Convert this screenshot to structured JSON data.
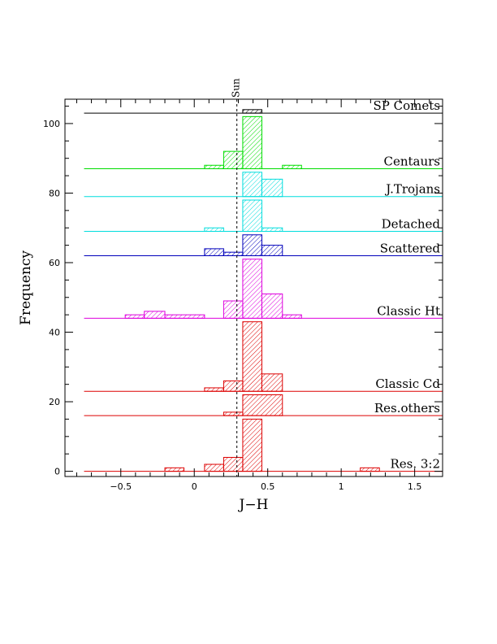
{
  "chart_data": {
    "type": "histogram",
    "xlabel": "J−H",
    "ylabel": "Frequency",
    "xlim": [
      -0.88,
      1.69
    ],
    "ylim": [
      -1.5,
      107
    ],
    "bin_width": 0.133,
    "x_ticks": [
      -0.5,
      0,
      0.5,
      1,
      1.5
    ],
    "x_tick_labels": [
      "−0.5",
      "0",
      "0.5",
      "1",
      "1.5"
    ],
    "y_ticks": [
      0,
      20,
      40,
      60,
      80,
      100
    ],
    "y_tick_labels": [
      "0",
      "20",
      "40",
      "60",
      "80",
      "100"
    ],
    "reference_line": {
      "label": "Sun",
      "x": 0.29
    },
    "series": [
      {
        "name": "SP Comets",
        "color": "#000000",
        "baseline": 103,
        "bins": [
          {
            "x0": 0.33,
            "x1": 0.46,
            "count": 1
          }
        ]
      },
      {
        "name": "Centaurs",
        "color": "#00dd00",
        "baseline": 87,
        "bins": [
          {
            "x0": 0.07,
            "x1": 0.2,
            "count": 1
          },
          {
            "x0": 0.2,
            "x1": 0.33,
            "count": 5
          },
          {
            "x0": 0.33,
            "x1": 0.46,
            "count": 15
          },
          {
            "x0": 0.6,
            "x1": 0.73,
            "count": 1
          }
        ]
      },
      {
        "name": "J.Trojans",
        "color": "#00dddd",
        "baseline": 79,
        "bins": [
          {
            "x0": 0.33,
            "x1": 0.46,
            "count": 7
          },
          {
            "x0": 0.46,
            "x1": 0.6,
            "count": 5
          }
        ]
      },
      {
        "name": "Detached",
        "color": "#00dddd",
        "baseline": 69,
        "bins": [
          {
            "x0": 0.07,
            "x1": 0.2,
            "count": 1
          },
          {
            "x0": 0.33,
            "x1": 0.46,
            "count": 9
          },
          {
            "x0": 0.46,
            "x1": 0.6,
            "count": 1
          }
        ]
      },
      {
        "name": "Scattered",
        "color": "#0000bb",
        "baseline": 62,
        "bins": [
          {
            "x0": 0.07,
            "x1": 0.2,
            "count": 2
          },
          {
            "x0": 0.2,
            "x1": 0.33,
            "count": 1
          },
          {
            "x0": 0.33,
            "x1": 0.46,
            "count": 6
          },
          {
            "x0": 0.46,
            "x1": 0.6,
            "count": 3
          }
        ]
      },
      {
        "name": "Classic Ht",
        "color": "#dd00dd",
        "baseline": 44,
        "bins": [
          {
            "x0": -0.47,
            "x1": -0.34,
            "count": 1
          },
          {
            "x0": -0.34,
            "x1": -0.2,
            "count": 2
          },
          {
            "x0": -0.2,
            "x1": 0.07,
            "count": 1
          },
          {
            "x0": 0.2,
            "x1": 0.33,
            "count": 5
          },
          {
            "x0": 0.33,
            "x1": 0.46,
            "count": 17
          },
          {
            "x0": 0.46,
            "x1": 0.6,
            "count": 7
          },
          {
            "x0": 0.6,
            "x1": 0.73,
            "count": 1
          }
        ]
      },
      {
        "name": "Classic Cd",
        "color": "#dd0000",
        "baseline": 23,
        "bins": [
          {
            "x0": 0.07,
            "x1": 0.2,
            "count": 1
          },
          {
            "x0": 0.2,
            "x1": 0.33,
            "count": 3
          },
          {
            "x0": 0.33,
            "x1": 0.46,
            "count": 20
          },
          {
            "x0": 0.46,
            "x1": 0.6,
            "count": 5
          }
        ]
      },
      {
        "name": "Res.others",
        "color": "#dd0000",
        "baseline": 16,
        "bins": [
          {
            "x0": 0.2,
            "x1": 0.33,
            "count": 1
          },
          {
            "x0": 0.33,
            "x1": 0.6,
            "count": 6
          }
        ]
      },
      {
        "name": "Res. 3:2",
        "color": "#dd0000",
        "baseline": 0,
        "bins": [
          {
            "x0": -0.2,
            "x1": -0.07,
            "count": 1
          },
          {
            "x0": 0.07,
            "x1": 0.2,
            "count": 2
          },
          {
            "x0": 0.2,
            "x1": 0.33,
            "count": 4
          },
          {
            "x0": 0.33,
            "x1": 0.46,
            "count": 15
          },
          {
            "x0": 1.13,
            "x1": 1.26,
            "count": 1
          }
        ]
      }
    ]
  }
}
